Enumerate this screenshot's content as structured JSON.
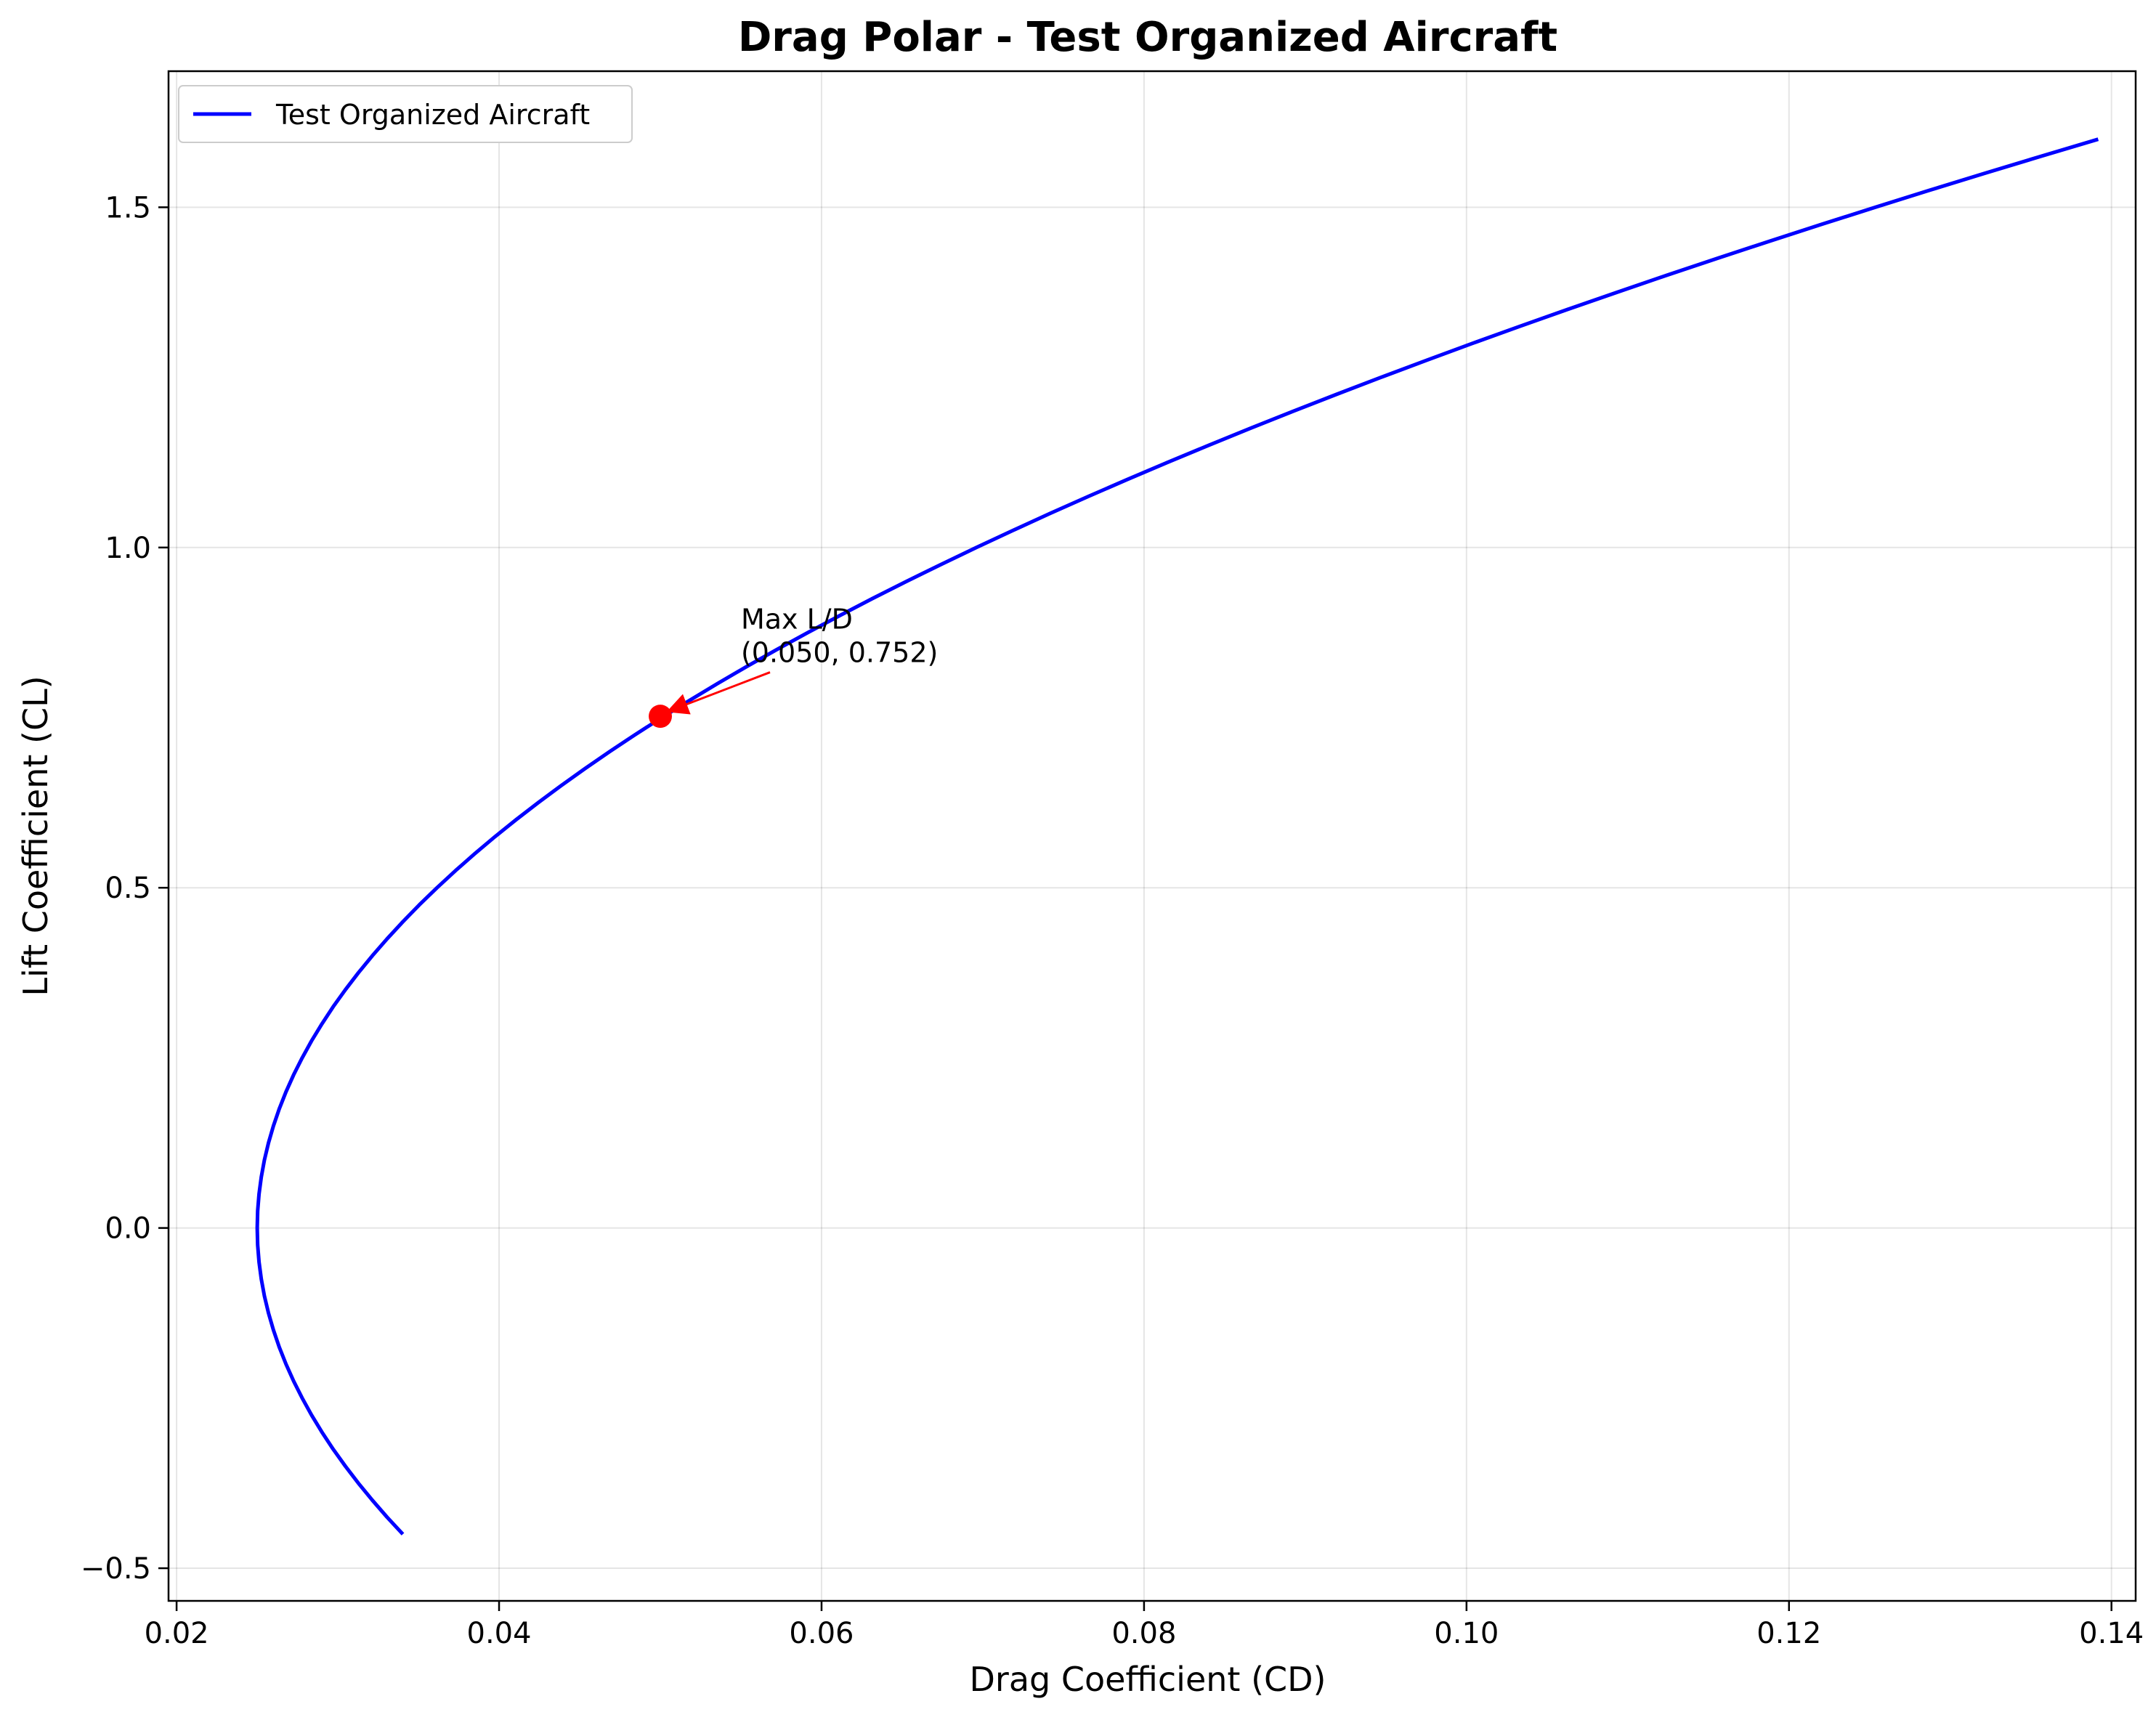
{
  "chart_data": {
    "type": "line",
    "title": "Drag Polar - Test Organized Aircraft",
    "xlabel": "Drag Coefficient (CD)",
    "ylabel": "Lift Coefficient (CL)",
    "xlim": [
      0.0195,
      0.1415
    ],
    "ylim": [
      -0.548,
      1.7
    ],
    "grid": true,
    "legend_placement": "top-left",
    "x_ticks": [
      {
        "value": 0.02,
        "label": "0.02"
      },
      {
        "value": 0.04,
        "label": "0.04"
      },
      {
        "value": 0.06,
        "label": "0.06"
      },
      {
        "value": 0.08,
        "label": "0.08"
      },
      {
        "value": 0.1,
        "label": "0.10"
      },
      {
        "value": 0.12,
        "label": "0.12"
      },
      {
        "value": 0.14,
        "label": "0.14"
      }
    ],
    "y_ticks": [
      {
        "value": -0.5,
        "label": "−0.5"
      },
      {
        "value": 0.0,
        "label": "0.0"
      },
      {
        "value": 0.5,
        "label": "0.5"
      },
      {
        "value": 1.0,
        "label": "1.0"
      },
      {
        "value": 1.5,
        "label": "1.5"
      }
    ],
    "series": [
      {
        "name": "Test Organized Aircraft",
        "color": "#0000ff",
        "points": [
          [
            0.0339,
            -0.45
          ],
          [
            0.0318,
            -0.4
          ],
          [
            0.0299,
            -0.35
          ],
          [
            0.0283,
            -0.3
          ],
          [
            0.027,
            -0.25
          ],
          [
            0.026,
            -0.2
          ],
          [
            0.0254,
            -0.15
          ],
          [
            0.0251,
            -0.1
          ],
          [
            0.025,
            -0.05
          ],
          [
            0.025,
            0.0
          ],
          [
            0.0251,
            0.05
          ],
          [
            0.0252,
            0.1
          ],
          [
            0.0256,
            0.15
          ],
          [
            0.0262,
            0.2
          ],
          [
            0.027,
            0.25
          ],
          [
            0.0283,
            0.3
          ],
          [
            0.0298,
            0.35
          ],
          [
            0.0316,
            0.4
          ],
          [
            0.0339,
            0.45
          ],
          [
            0.0364,
            0.5
          ],
          [
            0.0392,
            0.55
          ],
          [
            0.0425,
            0.6
          ],
          [
            0.046,
            0.65
          ],
          [
            0.05,
            0.7
          ],
          [
            0.0541,
            0.75
          ],
          [
            0.0586,
            0.8
          ],
          [
            0.0634,
            0.85
          ],
          [
            0.0684,
            0.9
          ],
          [
            0.0737,
            0.95
          ],
          [
            0.0793,
            1.0
          ],
          [
            0.0851,
            1.05
          ],
          [
            0.0912,
            1.1
          ],
          [
            0.0976,
            1.15
          ],
          [
            0.1041,
            1.2
          ],
          [
            0.1108,
            1.25
          ],
          [
            0.1178,
            1.3
          ],
          [
            0.125,
            1.35
          ],
          [
            0.1324,
            1.4
          ],
          [
            0.14,
            1.45
          ],
          [
            0.1382,
            1.6
          ]
        ]
      }
    ],
    "marker": {
      "x": 0.05,
      "y": 0.752,
      "color": "#ff0000"
    },
    "annotation": {
      "line1": "Max L/D",
      "line2": "(0.050, 0.752)",
      "arrow_color": "#ff0000",
      "text_x": 0.055,
      "text_y": 0.87
    }
  }
}
